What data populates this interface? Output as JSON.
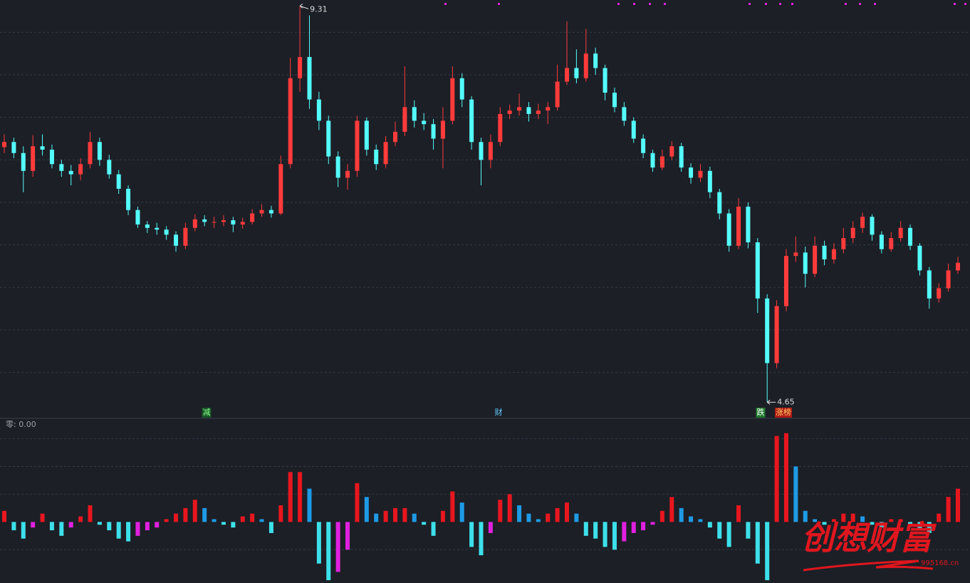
{
  "chart_data": [
    {
      "type": "candlestick",
      "open": [
        7.65,
        7.71,
        7.58,
        7.37,
        7.66,
        7.62,
        7.45,
        7.37,
        7.33,
        7.45,
        7.71,
        7.5,
        7.33,
        7.16,
        6.91,
        6.74,
        6.7,
        6.68,
        6.62,
        6.49,
        6.7,
        6.8,
        6.77,
        6.77,
        6.79,
        6.74,
        6.77,
        6.87,
        6.91,
        6.87,
        7.45,
        8.46,
        8.71,
        8.21,
        7.96,
        7.54,
        7.29,
        7.37,
        7.96,
        7.62,
        7.45,
        7.71,
        7.83,
        8.12,
        7.96,
        7.92,
        7.75,
        7.96,
        8.46,
        8.21,
        7.71,
        7.5,
        7.71,
        8.04,
        8.08,
        8.12,
        8.04,
        8.08,
        8.12,
        8.42,
        8.58,
        8.46,
        8.75,
        8.58,
        8.29,
        8.12,
        7.96,
        7.75,
        7.58,
        7.41,
        7.54,
        7.66,
        7.41,
        7.29,
        7.37,
        7.12,
        6.87,
        6.49,
        6.95,
        6.53,
        5.87,
        5.11,
        5.78,
        6.37,
        6.41,
        6.16,
        6.49,
        6.33,
        6.45,
        6.58,
        6.7,
        6.83,
        6.62,
        6.45,
        6.58,
        6.7,
        6.49,
        6.2,
        5.87,
        5.99,
        6.2
      ],
      "high": [
        7.8,
        7.76,
        7.66,
        7.79,
        7.8,
        7.68,
        7.5,
        7.44,
        7.52,
        7.83,
        7.76,
        7.56,
        7.38,
        7.2,
        6.95,
        6.78,
        6.76,
        6.72,
        6.66,
        6.76,
        6.86,
        6.85,
        6.83,
        6.85,
        6.83,
        6.82,
        6.92,
        6.98,
        6.96,
        7.55,
        8.7,
        9.31,
        9.2,
        8.3,
        8.02,
        7.6,
        7.45,
        8.02,
        8.0,
        7.68,
        7.78,
        7.95,
        8.6,
        8.2,
        8.05,
        7.98,
        8.12,
        8.6,
        8.52,
        8.25,
        7.76,
        7.8,
        8.12,
        8.15,
        8.28,
        8.18,
        8.16,
        8.18,
        8.62,
        9.13,
        8.8,
        9.04,
        8.82,
        8.62,
        8.35,
        8.18,
        8.0,
        7.8,
        7.62,
        7.62,
        7.72,
        7.7,
        7.46,
        7.45,
        7.42,
        7.16,
        6.92,
        7.05,
        7.0,
        6.58,
        5.92,
        5.85,
        6.45,
        6.6,
        6.48,
        6.6,
        6.55,
        6.52,
        6.7,
        6.78,
        6.88,
        6.86,
        6.66,
        6.65,
        6.78,
        6.74,
        6.52,
        6.24,
        6.05,
        6.28,
        6.36
      ],
      "low": [
        7.58,
        7.52,
        7.12,
        7.3,
        7.55,
        7.4,
        7.3,
        7.2,
        7.26,
        7.4,
        7.43,
        7.28,
        7.1,
        6.85,
        6.7,
        6.64,
        6.62,
        6.56,
        6.42,
        6.45,
        6.66,
        6.72,
        6.7,
        6.72,
        6.65,
        6.69,
        6.74,
        6.83,
        6.82,
        6.85,
        7.4,
        8.3,
        8.1,
        7.85,
        7.45,
        7.18,
        7.15,
        7.3,
        7.55,
        7.38,
        7.4,
        7.66,
        7.78,
        7.88,
        7.85,
        7.62,
        7.4,
        7.92,
        8.12,
        7.62,
        7.2,
        7.4,
        7.66,
        7.98,
        8.02,
        7.95,
        7.98,
        7.92,
        8.08,
        8.38,
        8.4,
        8.42,
        8.5,
        8.2,
        8.06,
        7.9,
        7.7,
        7.52,
        7.36,
        7.38,
        7.5,
        7.36,
        7.22,
        7.24,
        7.05,
        6.8,
        6.42,
        6.45,
        6.46,
        5.7,
        4.65,
        5.05,
        5.72,
        6.3,
        6.0,
        6.12,
        6.26,
        6.28,
        6.4,
        6.52,
        6.64,
        6.55,
        6.4,
        6.42,
        6.54,
        6.44,
        6.14,
        5.75,
        5.82,
        5.95,
        6.16
      ],
      "close": [
        7.71,
        7.58,
        7.37,
        7.66,
        7.62,
        7.45,
        7.37,
        7.33,
        7.45,
        7.71,
        7.5,
        7.33,
        7.16,
        6.91,
        6.74,
        6.7,
        6.68,
        6.62,
        6.49,
        6.7,
        6.8,
        6.77,
        6.77,
        6.79,
        6.74,
        6.77,
        6.87,
        6.91,
        6.87,
        7.45,
        8.46,
        8.71,
        8.21,
        7.96,
        7.54,
        7.29,
        7.37,
        7.96,
        7.62,
        7.45,
        7.71,
        7.83,
        8.12,
        7.96,
        7.92,
        7.75,
        7.96,
        8.46,
        8.21,
        7.71,
        7.5,
        7.71,
        8.04,
        8.08,
        8.12,
        8.04,
        8.08,
        8.12,
        8.42,
        8.58,
        8.46,
        8.75,
        8.58,
        8.29,
        8.12,
        7.96,
        7.75,
        7.58,
        7.41,
        7.54,
        7.66,
        7.41,
        7.29,
        7.37,
        7.12,
        6.87,
        6.49,
        6.95,
        6.53,
        5.87,
        5.11,
        5.78,
        6.37,
        6.41,
        6.16,
        6.49,
        6.33,
        6.45,
        6.58,
        6.7,
        6.83,
        6.62,
        6.45,
        6.58,
        6.7,
        6.49,
        6.2,
        5.87,
        5.99,
        6.2,
        6.29
      ],
      "ylim": [
        4.46,
        9.38
      ],
      "yticks": [
        5,
        5.5,
        6,
        6.5,
        7,
        7.5,
        8,
        8.5,
        9
      ],
      "grid": true,
      "up_color": "#ff3b3b",
      "down_color": "#54fcfc",
      "annotations": [
        "减",
        "财",
        "跌",
        "涨榜"
      ]
    },
    {
      "type": "bar",
      "title": "零: 0.00",
      "values": [
        0.4,
        -0.3,
        -0.6,
        -0.2,
        0.3,
        -0.3,
        -0.5,
        -0.2,
        0.2,
        0.6,
        -0.1,
        -0.3,
        -0.6,
        -0.7,
        -0.5,
        -0.3,
        -0.2,
        0.1,
        0.3,
        0.5,
        0.8,
        0.5,
        0.1,
        -0.1,
        -0.2,
        0.2,
        0.3,
        0.1,
        -0.4,
        0.6,
        1.8,
        1.8,
        1.2,
        -1.5,
        -2.1,
        -1.8,
        -1.0,
        1.4,
        0.9,
        0.3,
        0.4,
        0.5,
        0.5,
        0.3,
        -0.1,
        -0.5,
        0.4,
        1.1,
        0.7,
        -0.9,
        -1.2,
        -0.4,
        0.8,
        1.0,
        0.6,
        0.3,
        0.1,
        0.3,
        0.5,
        0.7,
        0.3,
        -0.5,
        -0.6,
        -0.9,
        -1.0,
        -0.7,
        -0.4,
        -0.3,
        -0.1,
        0.4,
        0.9,
        0.5,
        0.2,
        0.1,
        -0.2,
        -0.6,
        -0.9,
        0.6,
        -0.6,
        -1.5,
        -2.1,
        3.1,
        3.2,
        2.0,
        0.4,
        0.1,
        -0.1,
        0.1,
        0.3,
        0.3,
        0.2,
        -0.1,
        -0.2,
        0.1,
        0.1,
        -0.1,
        -0.3,
        -0.4,
        0.3,
        0.9,
        1.2
      ],
      "ylim": [
        -2.2,
        3.4
      ],
      "yticks": [
        -1,
        1,
        2,
        3
      ],
      "grid": true,
      "colors": {
        "rise_up": "#e8161e",
        "fall_up": "#1e9be6",
        "fall_down": "#3de0ea",
        "rise_down": "#e020e0"
      }
    }
  ],
  "watermark": {
    "text": "创想财富",
    "url": "995168.cn"
  }
}
